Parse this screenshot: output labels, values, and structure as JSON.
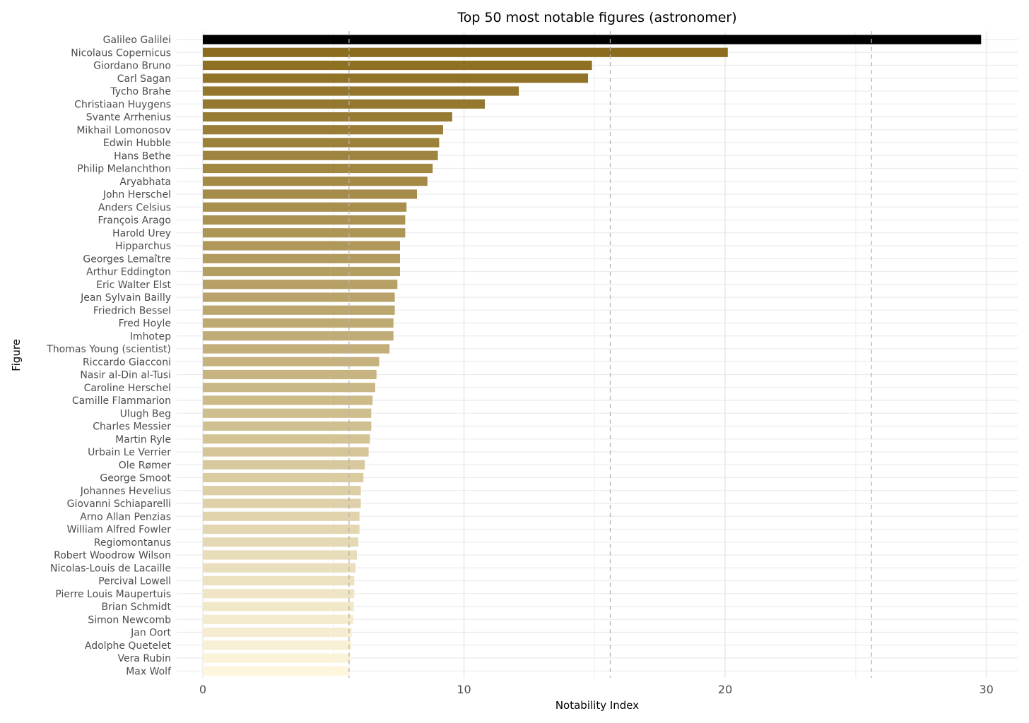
{
  "chart_data": {
    "type": "bar",
    "orientation": "horizontal",
    "title": "Top 50 most notable figures (astronomer)",
    "xlabel": "Notability Index",
    "ylabel": "Figure",
    "xlim": [
      -1,
      31.2
    ],
    "xticks": [
      0,
      10,
      20,
      30
    ],
    "grid": true,
    "legend": "none",
    "reference_lines": [
      5.6,
      15.6,
      25.6
    ],
    "categories": [
      "Galileo Galilei",
      "Nicolaus Copernicus",
      "Giordano Bruno",
      "Carl Sagan",
      "Tycho Brahe",
      "Christiaan Huygens",
      "Svante Arrhenius",
      "Mikhail Lomonosov",
      "Edwin Hubble",
      "Hans Bethe",
      "Philip Melanchthon",
      "Aryabhata",
      "John Herschel",
      "Anders Celsius",
      "François Arago",
      "Harold Urey",
      "Hipparchus",
      "Georges Lemaître",
      "Arthur Eddington",
      "Eric Walter Elst",
      "Jean Sylvain Bailly",
      "Friedrich Bessel",
      "Fred Hoyle",
      "Imhotep",
      "Thomas Young (scientist)",
      "Riccardo Giacconi",
      "Nasir al-Din al-Tusi",
      "Caroline Herschel",
      "Camille Flammarion",
      "Ulugh Beg",
      "Charles Messier",
      "Martin Ryle",
      "Urbain Le Verrier",
      "Ole Rømer",
      "George Smoot",
      "Johannes Hevelius",
      "Giovanni Schiaparelli",
      "Arno Allan Penzias",
      "William Alfred Fowler",
      "Regiomontanus",
      "Robert Woodrow Wilson",
      "Nicolas-Louis de Lacaille",
      "Percival Lowell",
      "Pierre Louis Maupertuis",
      "Brian Schmidt",
      "Simon Newcomb",
      "Jan Oort",
      "Adolphe Quetelet",
      "Vera Rubin",
      "Max Wolf"
    ],
    "values": [
      29.8,
      20.1,
      14.9,
      14.75,
      12.1,
      10.8,
      9.55,
      9.2,
      9.05,
      9.0,
      8.8,
      8.6,
      8.2,
      7.8,
      7.75,
      7.75,
      7.55,
      7.55,
      7.55,
      7.45,
      7.35,
      7.35,
      7.3,
      7.3,
      7.15,
      6.75,
      6.65,
      6.6,
      6.5,
      6.45,
      6.45,
      6.4,
      6.35,
      6.2,
      6.15,
      6.05,
      6.05,
      6.0,
      6.0,
      5.95,
      5.9,
      5.85,
      5.8,
      5.8,
      5.78,
      5.75,
      5.7,
      5.68,
      5.65,
      5.62
    ],
    "colors": {
      "highlight": "#000000",
      "gradient_start": "#8c6d1f",
      "gradient_end": "#fdf6dc",
      "grid": "#ebebeb",
      "reference_line": "#b3b3b3"
    }
  }
}
